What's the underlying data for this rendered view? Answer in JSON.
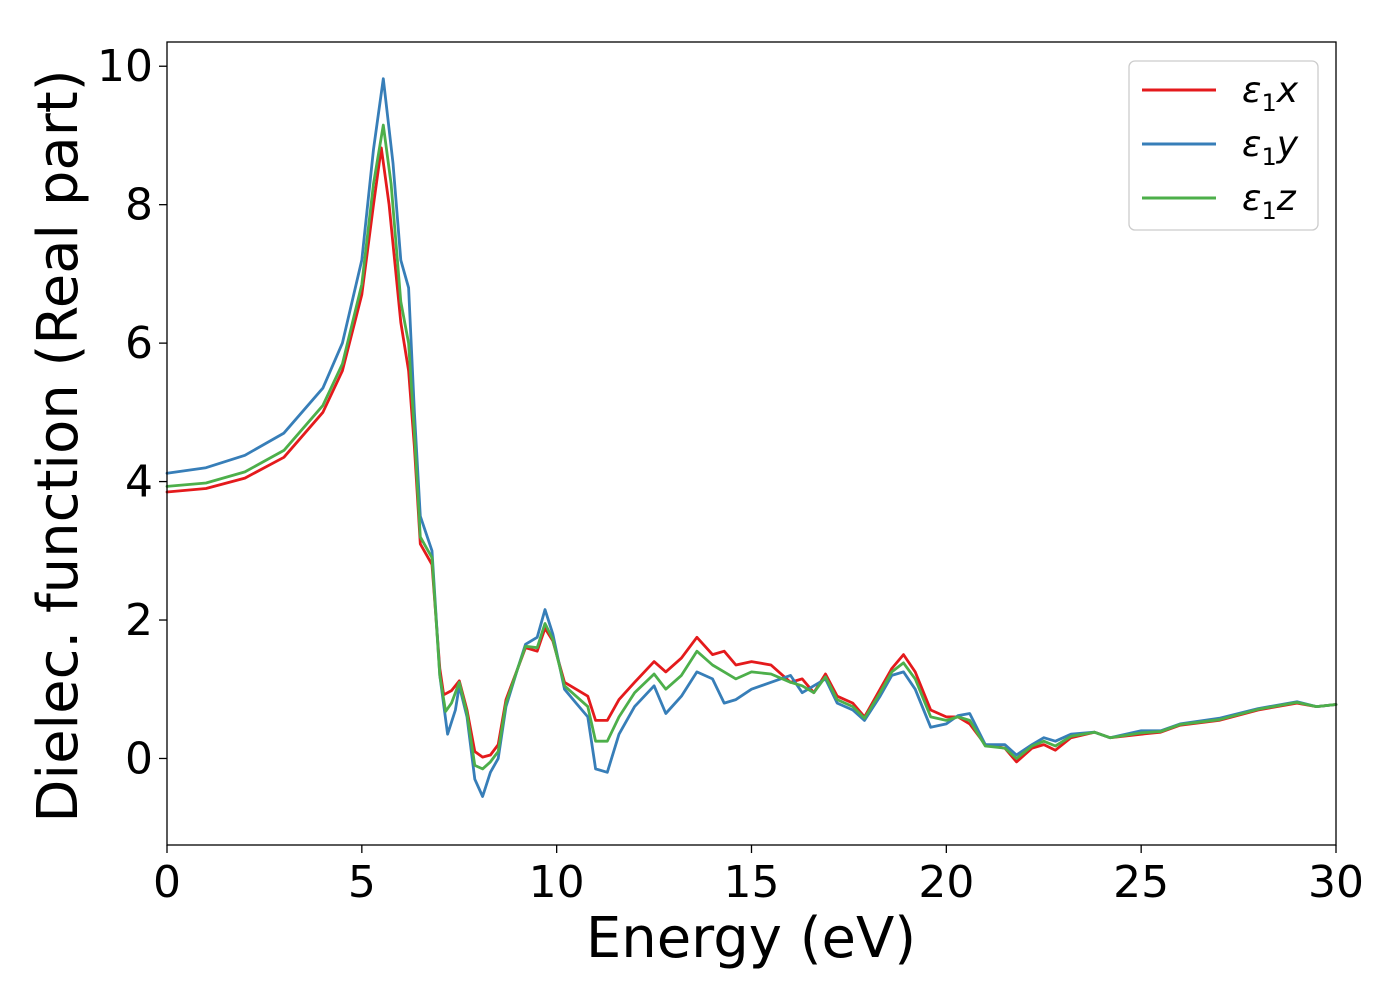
{
  "chart_data": {
    "type": "line",
    "xlabel": "Energy (eV)",
    "ylabel": "Dielec. function (Real part)",
    "xlim": [
      0,
      30
    ],
    "ylim": [
      -1.25,
      10.35
    ],
    "x_ticks": [
      "0",
      "5",
      "10",
      "15",
      "20",
      "25",
      "30"
    ],
    "y_ticks": [
      "0",
      "2",
      "4",
      "6",
      "8",
      "10"
    ],
    "legend_position": "top-right",
    "grid": false,
    "series": [
      {
        "name": "ε1x",
        "legend_base": "ε",
        "legend_sub": "1",
        "legend_var": "x",
        "color": "#e41a1c",
        "points": [
          [
            0,
            3.85
          ],
          [
            1,
            3.9
          ],
          [
            2,
            4.05
          ],
          [
            3,
            4.35
          ],
          [
            4,
            5.0
          ],
          [
            4.5,
            5.6
          ],
          [
            5,
            6.7
          ],
          [
            5.3,
            8.0
          ],
          [
            5.5,
            8.82
          ],
          [
            5.7,
            8.0
          ],
          [
            6.0,
            6.3
          ],
          [
            6.2,
            5.6
          ],
          [
            6.35,
            4.5
          ],
          [
            6.5,
            3.1
          ],
          [
            6.8,
            2.8
          ],
          [
            7.0,
            1.3
          ],
          [
            7.1,
            0.92
          ],
          [
            7.3,
            0.98
          ],
          [
            7.5,
            1.12
          ],
          [
            7.7,
            0.7
          ],
          [
            7.9,
            0.1
          ],
          [
            8.1,
            0.02
          ],
          [
            8.3,
            0.05
          ],
          [
            8.5,
            0.2
          ],
          [
            8.7,
            0.85
          ],
          [
            9.0,
            1.3
          ],
          [
            9.2,
            1.6
          ],
          [
            9.5,
            1.55
          ],
          [
            9.7,
            1.88
          ],
          [
            9.9,
            1.7
          ],
          [
            10.2,
            1.1
          ],
          [
            10.5,
            1.0
          ],
          [
            10.8,
            0.9
          ],
          [
            11.0,
            0.55
          ],
          [
            11.3,
            0.55
          ],
          [
            11.6,
            0.85
          ],
          [
            12.0,
            1.1
          ],
          [
            12.5,
            1.4
          ],
          [
            12.8,
            1.25
          ],
          [
            13.2,
            1.45
          ],
          [
            13.6,
            1.75
          ],
          [
            14.0,
            1.5
          ],
          [
            14.3,
            1.55
          ],
          [
            14.6,
            1.35
          ],
          [
            15.0,
            1.4
          ],
          [
            15.5,
            1.35
          ],
          [
            16.0,
            1.1
          ],
          [
            16.3,
            1.15
          ],
          [
            16.6,
            0.95
          ],
          [
            16.9,
            1.22
          ],
          [
            17.2,
            0.9
          ],
          [
            17.6,
            0.8
          ],
          [
            17.9,
            0.6
          ],
          [
            18.3,
            1.0
          ],
          [
            18.6,
            1.3
          ],
          [
            18.9,
            1.5
          ],
          [
            19.2,
            1.25
          ],
          [
            19.6,
            0.7
          ],
          [
            20.0,
            0.6
          ],
          [
            20.3,
            0.6
          ],
          [
            20.6,
            0.5
          ],
          [
            21.0,
            0.2
          ],
          [
            21.5,
            0.15
          ],
          [
            21.8,
            -0.05
          ],
          [
            22.2,
            0.15
          ],
          [
            22.5,
            0.2
          ],
          [
            22.8,
            0.12
          ],
          [
            23.2,
            0.3
          ],
          [
            23.8,
            0.38
          ],
          [
            24.2,
            0.3
          ],
          [
            25.0,
            0.35
          ],
          [
            25.5,
            0.38
          ],
          [
            26.0,
            0.48
          ],
          [
            27.0,
            0.55
          ],
          [
            28.0,
            0.7
          ],
          [
            29.0,
            0.8
          ],
          [
            29.5,
            0.75
          ],
          [
            30.0,
            0.78
          ]
        ]
      },
      {
        "name": "ε1y",
        "legend_base": "ε",
        "legend_sub": "1",
        "legend_var": "y",
        "color": "#377eb8",
        "points": [
          [
            0,
            4.12
          ],
          [
            1,
            4.2
          ],
          [
            2,
            4.38
          ],
          [
            3,
            4.7
          ],
          [
            4,
            5.35
          ],
          [
            4.5,
            6.0
          ],
          [
            5,
            7.2
          ],
          [
            5.3,
            8.8
          ],
          [
            5.55,
            9.82
          ],
          [
            5.8,
            8.6
          ],
          [
            6.0,
            7.2
          ],
          [
            6.2,
            6.8
          ],
          [
            6.35,
            5.0
          ],
          [
            6.5,
            3.5
          ],
          [
            6.8,
            3.0
          ],
          [
            7.0,
            1.2
          ],
          [
            7.2,
            0.35
          ],
          [
            7.4,
            0.7
          ],
          [
            7.5,
            1.05
          ],
          [
            7.7,
            0.6
          ],
          [
            7.9,
            -0.3
          ],
          [
            8.1,
            -0.55
          ],
          [
            8.3,
            -0.2
          ],
          [
            8.5,
            0.0
          ],
          [
            8.7,
            0.75
          ],
          [
            9.0,
            1.3
          ],
          [
            9.2,
            1.65
          ],
          [
            9.5,
            1.75
          ],
          [
            9.7,
            2.15
          ],
          [
            9.9,
            1.8
          ],
          [
            10.2,
            1.0
          ],
          [
            10.5,
            0.8
          ],
          [
            10.8,
            0.6
          ],
          [
            11.0,
            -0.15
          ],
          [
            11.3,
            -0.2
          ],
          [
            11.6,
            0.35
          ],
          [
            12.0,
            0.75
          ],
          [
            12.5,
            1.05
          ],
          [
            12.8,
            0.65
          ],
          [
            13.2,
            0.9
          ],
          [
            13.6,
            1.25
          ],
          [
            14.0,
            1.15
          ],
          [
            14.3,
            0.8
          ],
          [
            14.6,
            0.85
          ],
          [
            15.0,
            1.0
          ],
          [
            15.5,
            1.1
          ],
          [
            16.0,
            1.2
          ],
          [
            16.3,
            0.95
          ],
          [
            16.6,
            1.05
          ],
          [
            16.9,
            1.15
          ],
          [
            17.2,
            0.8
          ],
          [
            17.6,
            0.7
          ],
          [
            17.9,
            0.55
          ],
          [
            18.3,
            0.9
          ],
          [
            18.6,
            1.2
          ],
          [
            18.9,
            1.25
          ],
          [
            19.2,
            1.0
          ],
          [
            19.6,
            0.45
          ],
          [
            20.0,
            0.5
          ],
          [
            20.3,
            0.62
          ],
          [
            20.6,
            0.65
          ],
          [
            21.0,
            0.2
          ],
          [
            21.5,
            0.2
          ],
          [
            21.8,
            0.05
          ],
          [
            22.2,
            0.2
          ],
          [
            22.5,
            0.3
          ],
          [
            22.8,
            0.25
          ],
          [
            23.2,
            0.35
          ],
          [
            23.8,
            0.38
          ],
          [
            24.2,
            0.3
          ],
          [
            25.0,
            0.4
          ],
          [
            25.5,
            0.4
          ],
          [
            26.0,
            0.5
          ],
          [
            27.0,
            0.58
          ],
          [
            28.0,
            0.72
          ],
          [
            29.0,
            0.82
          ],
          [
            29.5,
            0.75
          ],
          [
            30.0,
            0.78
          ]
        ]
      },
      {
        "name": "ε1z",
        "legend_base": "ε",
        "legend_sub": "1",
        "legend_var": "z",
        "color": "#4daf4a",
        "points": [
          [
            0,
            3.93
          ],
          [
            1,
            3.98
          ],
          [
            2,
            4.14
          ],
          [
            3,
            4.45
          ],
          [
            4,
            5.1
          ],
          [
            4.5,
            5.7
          ],
          [
            5,
            6.85
          ],
          [
            5.3,
            8.3
          ],
          [
            5.55,
            9.15
          ],
          [
            5.75,
            8.3
          ],
          [
            6.0,
            6.6
          ],
          [
            6.2,
            6.0
          ],
          [
            6.35,
            4.7
          ],
          [
            6.5,
            3.2
          ],
          [
            6.8,
            2.9
          ],
          [
            7.0,
            1.2
          ],
          [
            7.15,
            0.68
          ],
          [
            7.3,
            0.8
          ],
          [
            7.5,
            1.1
          ],
          [
            7.7,
            0.65
          ],
          [
            7.9,
            -0.1
          ],
          [
            8.1,
            -0.15
          ],
          [
            8.3,
            -0.05
          ],
          [
            8.5,
            0.1
          ],
          [
            8.7,
            0.8
          ],
          [
            9.0,
            1.3
          ],
          [
            9.2,
            1.62
          ],
          [
            9.5,
            1.6
          ],
          [
            9.7,
            1.95
          ],
          [
            9.9,
            1.72
          ],
          [
            10.2,
            1.05
          ],
          [
            10.5,
            0.9
          ],
          [
            10.8,
            0.75
          ],
          [
            11.0,
            0.25
          ],
          [
            11.3,
            0.25
          ],
          [
            11.6,
            0.6
          ],
          [
            12.0,
            0.95
          ],
          [
            12.5,
            1.22
          ],
          [
            12.8,
            1.0
          ],
          [
            13.2,
            1.2
          ],
          [
            13.6,
            1.55
          ],
          [
            14.0,
            1.35
          ],
          [
            14.3,
            1.25
          ],
          [
            14.6,
            1.15
          ],
          [
            15.0,
            1.25
          ],
          [
            15.5,
            1.22
          ],
          [
            16.0,
            1.1
          ],
          [
            16.3,
            1.05
          ],
          [
            16.6,
            0.95
          ],
          [
            16.9,
            1.18
          ],
          [
            17.2,
            0.85
          ],
          [
            17.6,
            0.75
          ],
          [
            17.9,
            0.58
          ],
          [
            18.3,
            0.95
          ],
          [
            18.6,
            1.25
          ],
          [
            18.9,
            1.38
          ],
          [
            19.2,
            1.15
          ],
          [
            19.6,
            0.6
          ],
          [
            20.0,
            0.55
          ],
          [
            20.3,
            0.6
          ],
          [
            20.6,
            0.55
          ],
          [
            21.0,
            0.18
          ],
          [
            21.5,
            0.15
          ],
          [
            21.8,
            0.0
          ],
          [
            22.2,
            0.18
          ],
          [
            22.5,
            0.25
          ],
          [
            22.8,
            0.18
          ],
          [
            23.2,
            0.32
          ],
          [
            23.8,
            0.38
          ],
          [
            24.2,
            0.3
          ],
          [
            25.0,
            0.37
          ],
          [
            25.5,
            0.39
          ],
          [
            26.0,
            0.49
          ],
          [
            27.0,
            0.56
          ],
          [
            28.0,
            0.71
          ],
          [
            29.0,
            0.81
          ],
          [
            29.5,
            0.75
          ],
          [
            30.0,
            0.78
          ]
        ]
      }
    ]
  }
}
